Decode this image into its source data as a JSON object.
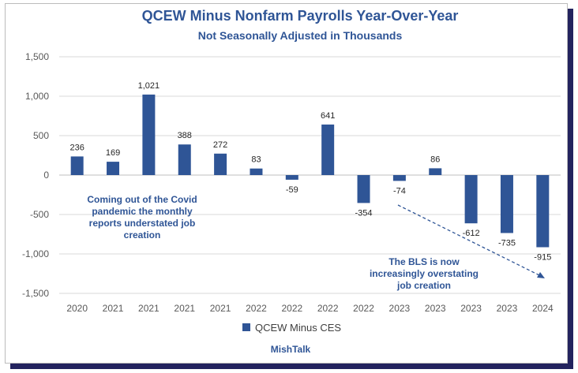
{
  "chart_data": {
    "type": "bar",
    "title": "QCEW Minus Nonfarm Payrolls Year-Over-Year",
    "subtitle": "Not Seasonally Adjusted in Thousands",
    "categories": [
      "2020",
      "2021",
      "2021",
      "2021",
      "2021",
      "2022",
      "2022",
      "2022",
      "2022",
      "2023",
      "2023",
      "2023",
      "2023",
      "2024"
    ],
    "series": [
      {
        "name": "QCEW Minus CES",
        "values": [
          236,
          169,
          1021,
          388,
          272,
          83,
          -59,
          641,
          -354,
          -74,
          86,
          -612,
          -735,
          -915
        ],
        "labels": [
          "236",
          "169",
          "1,021",
          "388",
          "272",
          "83",
          "-59",
          "641",
          "-354",
          "-74",
          "86",
          "-612",
          "-735",
          "-915"
        ],
        "color": "#2f5596"
      }
    ],
    "ylim": [
      -1500,
      1500
    ],
    "yticks": [
      1500,
      1000,
      500,
      0,
      -500,
      -1000,
      -1500
    ],
    "ytick_labels": [
      "1,500",
      "1,000",
      "500",
      "0",
      "-500",
      "-1,000",
      "-1,500"
    ],
    "grid": true,
    "legend": "bottom",
    "annotations": [
      {
        "name": "covid-note",
        "lines": [
          "Coming out of the Covid",
          "pandemic the monthly",
          "reports understated job",
          "creation"
        ]
      },
      {
        "name": "bls-note",
        "lines": [
          "The BLS is now",
          "increasingly overstating",
          "job creation"
        ]
      }
    ]
  },
  "source": "MishTalk",
  "colors": {
    "bar": "#2f5596",
    "title": "#2f5596",
    "grid": "#d9d9d9",
    "frame_shadow": "#23235e"
  }
}
